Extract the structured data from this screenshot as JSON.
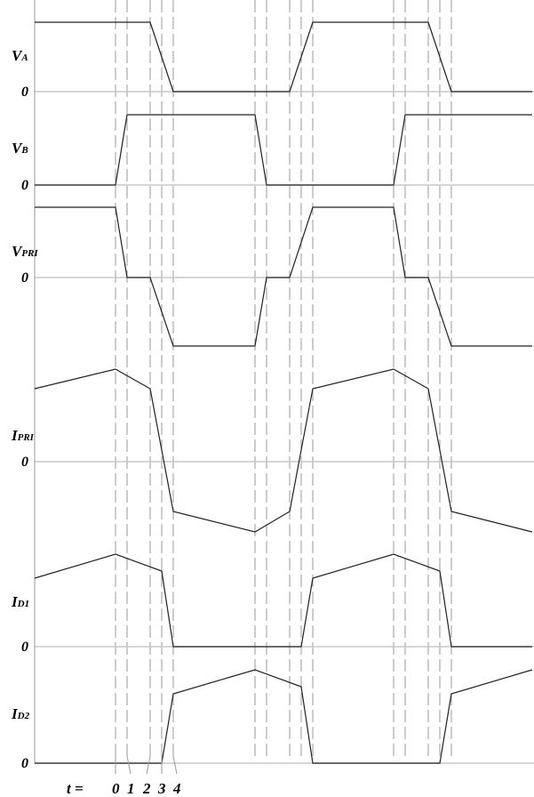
{
  "signals": [
    {
      "name": "V",
      "sub": "A",
      "zero": "0"
    },
    {
      "name": "V",
      "sub": "B",
      "zero": "0"
    },
    {
      "name": "V",
      "sub": "PRI",
      "zero": "0"
    },
    {
      "name": "I",
      "sub": "PRI",
      "zero": "0"
    },
    {
      "name": "I",
      "sub": "D1",
      "zero": "0"
    },
    {
      "name": "I",
      "sub": "D2",
      "zero": "0"
    }
  ],
  "time_axis": {
    "label": "t =",
    "instants": [
      "0",
      "1",
      "2",
      "3",
      "4"
    ]
  },
  "colors": {
    "waveform": "#222222",
    "baseline": "#c8c8c8",
    "dashed": "#999999",
    "axis": "#999999"
  }
}
